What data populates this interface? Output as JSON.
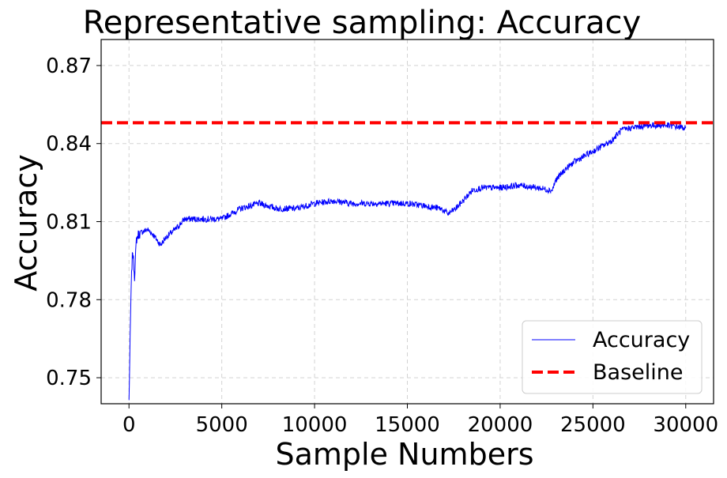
{
  "chart_data": {
    "type": "line",
    "title": "Representative sampling: Accuracy",
    "xlabel": "Sample Numbers",
    "ylabel": "Accuracy",
    "xlim": [
      -1500,
      31500
    ],
    "ylim": [
      0.74,
      0.88
    ],
    "xticks": [
      0,
      5000,
      10000,
      15000,
      20000,
      25000,
      30000
    ],
    "xtick_labels": [
      "0",
      "5000",
      "10000",
      "15000",
      "20000",
      "25000",
      "30000"
    ],
    "yticks": [
      0.75,
      0.78,
      0.81,
      0.84,
      0.87
    ],
    "ytick_labels": [
      "0.75",
      "0.78",
      "0.81",
      "0.84",
      "0.87"
    ],
    "grid": true,
    "legend_position": "bottom-right",
    "series": [
      {
        "name": "Accuracy",
        "color": "#0000ff",
        "style": "solid",
        "x": [
          0,
          50,
          100,
          150,
          200,
          300,
          400,
          500,
          700,
          1000,
          1300,
          1700,
          2000,
          2500,
          3000,
          4000,
          5000,
          6000,
          7000,
          8000,
          9000,
          10000,
          11000,
          12000,
          13000,
          14000,
          15000,
          16000,
          16800,
          17200,
          17600,
          18000,
          18500,
          19000,
          20000,
          21000,
          22000,
          22800,
          23000,
          23500,
          24000,
          25000,
          26000,
          26500,
          27000,
          28000,
          29000,
          30000
        ],
        "y": [
          0.741,
          0.76,
          0.779,
          0.792,
          0.799,
          0.789,
          0.803,
          0.805,
          0.806,
          0.807,
          0.805,
          0.801,
          0.804,
          0.807,
          0.811,
          0.811,
          0.811,
          0.815,
          0.817,
          0.815,
          0.815,
          0.817,
          0.818,
          0.817,
          0.817,
          0.817,
          0.817,
          0.816,
          0.815,
          0.813,
          0.815,
          0.818,
          0.822,
          0.823,
          0.823,
          0.824,
          0.823,
          0.822,
          0.826,
          0.83,
          0.833,
          0.837,
          0.841,
          0.845,
          0.846,
          0.847,
          0.847,
          0.846
        ]
      },
      {
        "name": "Baseline",
        "color": "#ff0000",
        "style": "dashed",
        "value": 0.848
      }
    ]
  }
}
